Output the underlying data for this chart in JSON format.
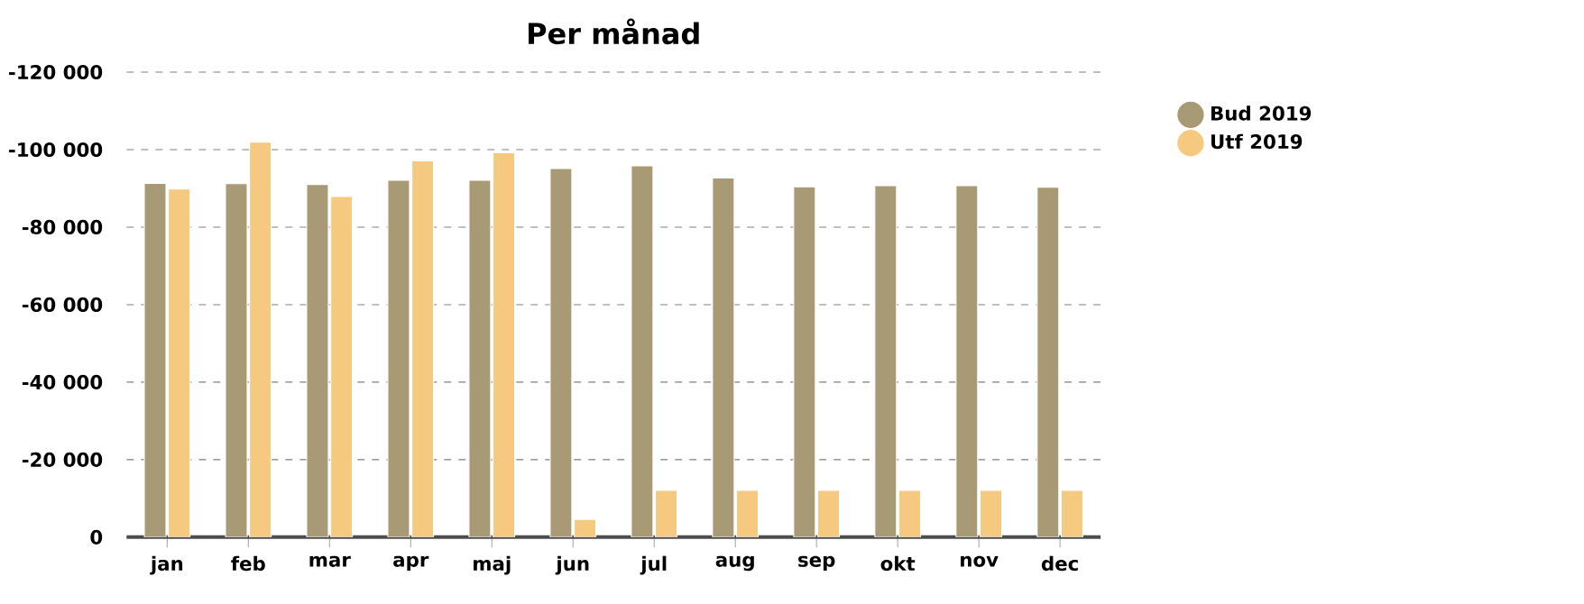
{
  "chart_data": {
    "type": "bar",
    "title": "Per månad",
    "categories": [
      "jan",
      "feb",
      "mar",
      "apr",
      "maj",
      "jun",
      "jul",
      "aug",
      "sep",
      "okt",
      "nov",
      "dec"
    ],
    "series": [
      {
        "name": "Bud 2019",
        "color": "#a89a74",
        "values": [
          -91300,
          -91200,
          -91000,
          -92100,
          -92100,
          -95100,
          -95800,
          -92700,
          -90400,
          -90700,
          -90700,
          -90300
        ]
      },
      {
        "name": "Utf 2019",
        "color": "#f5c97f",
        "values": [
          -89800,
          -101900,
          -87900,
          -97100,
          -99200,
          -4600,
          -12100,
          -12100,
          -12100,
          -12100,
          -12100,
          -12100
        ]
      }
    ],
    "ylim": [
      0,
      -120000
    ],
    "yticks": [
      {
        "value": 0,
        "label": "0"
      },
      {
        "value": -20000,
        "label": "-20 000"
      },
      {
        "value": -40000,
        "label": "-40 000"
      },
      {
        "value": -60000,
        "label": "-60 000"
      },
      {
        "value": -80000,
        "label": "-80 000"
      },
      {
        "value": -100000,
        "label": "-100 000"
      },
      {
        "value": -120000,
        "label": "-120 000"
      }
    ],
    "grid": "y",
    "legend": "top right",
    "marker": "circle"
  }
}
